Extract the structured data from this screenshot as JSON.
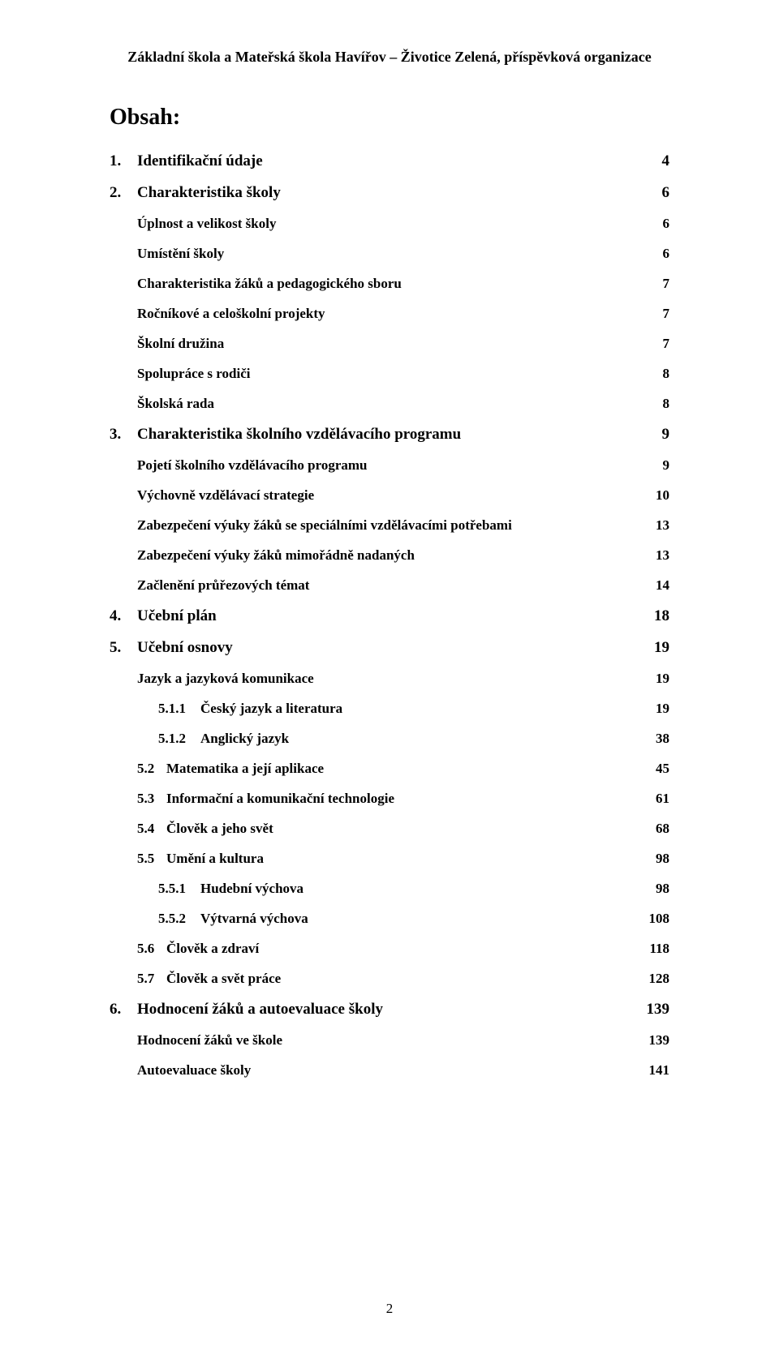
{
  "header": "Základní škola a Mateřská škola Havířov – Životice Zelená, příspěvková organizace",
  "title": "Obsah:",
  "footer": "2",
  "toc": [
    {
      "lvl": 1,
      "num": "1.",
      "text": "Identifikační údaje",
      "page": "4"
    },
    {
      "lvl": 1,
      "num": "2.",
      "text": "Charakteristika školy",
      "page": "6"
    },
    {
      "lvl": 2,
      "num": "",
      "text": "Úplnost a velikost školy",
      "page": "6"
    },
    {
      "lvl": 2,
      "num": "",
      "text": "Umístění školy",
      "page": "6"
    },
    {
      "lvl": 2,
      "num": "",
      "text": "Charakteristika žáků a pedagogického sboru",
      "page": "7"
    },
    {
      "lvl": 2,
      "num": "",
      "text": "Ročníkové a celoškolní projekty",
      "page": "7"
    },
    {
      "lvl": 2,
      "num": "",
      "text": "Školní družina",
      "page": "7"
    },
    {
      "lvl": 2,
      "num": "",
      "text": "Spolupráce s rodiči",
      "page": "8"
    },
    {
      "lvl": 2,
      "num": "",
      "text": "Školská rada",
      "page": "8"
    },
    {
      "lvl": 1,
      "num": "3.",
      "text": "Charakteristika školního vzdělávacího programu",
      "page": "9"
    },
    {
      "lvl": 2,
      "num": "",
      "text": "Pojetí školního vzdělávacího programu",
      "page": "9"
    },
    {
      "lvl": 2,
      "num": "",
      "text": "Výchovně vzdělávací strategie",
      "page": "10"
    },
    {
      "lvl": 2,
      "num": "",
      "text": "Zabezpečení výuky žáků se speciálními vzdělávacími potřebami",
      "page": "13"
    },
    {
      "lvl": 2,
      "num": "",
      "text": "Zabezpečení výuky žáků mimořádně nadaných",
      "page": "13"
    },
    {
      "lvl": 2,
      "num": "",
      "text": "Začlenění průřezových témat",
      "page": "14"
    },
    {
      "lvl": 1,
      "num": "4.",
      "text": "Učební plán",
      "page": "18"
    },
    {
      "lvl": 1,
      "num": "5.",
      "text": "Učební osnovy",
      "page": "19"
    },
    {
      "lvl": 2,
      "num": "",
      "text": "Jazyk a jazyková komunikace",
      "page": "19"
    },
    {
      "lvl": 4,
      "num": "5.1.1",
      "text": "Český jazyk a literatura",
      "page": "19"
    },
    {
      "lvl": 4,
      "num": "5.1.2",
      "text": "Anglický jazyk",
      "page": "38"
    },
    {
      "lvl": 3,
      "num": "5.2",
      "text": "Matematika a její aplikace",
      "page": "45"
    },
    {
      "lvl": 3,
      "num": "5.3",
      "text": "Informační a komunikační technologie",
      "page": "61"
    },
    {
      "lvl": 3,
      "num": "5.4",
      "text": "Člověk a jeho svět",
      "page": "68"
    },
    {
      "lvl": 3,
      "num": "5.5",
      "text": "Umění a kultura",
      "page": "98"
    },
    {
      "lvl": 4,
      "num": "5.5.1",
      "text": "Hudební výchova",
      "page": "98"
    },
    {
      "lvl": 4,
      "num": "5.5.2",
      "text": "Výtvarná výchova",
      "page": "108"
    },
    {
      "lvl": 3,
      "num": "5.6",
      "text": "Člověk a zdraví",
      "page": "118"
    },
    {
      "lvl": 3,
      "num": "5.7",
      "text": "Člověk a svět práce",
      "page": "128"
    },
    {
      "lvl": 1,
      "num": "6.",
      "text": "Hodnocení žáků a autoevaluace školy",
      "page": "139"
    },
    {
      "lvl": 2,
      "num": "",
      "text": "Hodnocení žáků ve škole",
      "page": "139"
    },
    {
      "lvl": 2,
      "num": "",
      "text": "Autoevaluace školy",
      "page": "141"
    }
  ]
}
